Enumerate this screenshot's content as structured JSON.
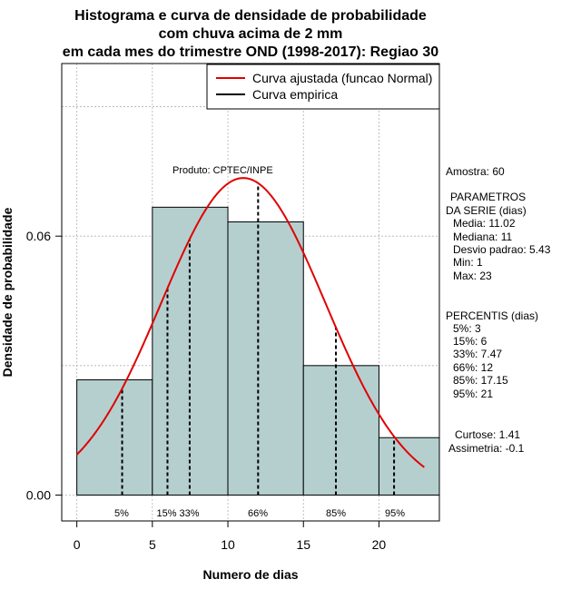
{
  "chart_data": {
    "type": "histogram",
    "title_lines": [
      "Histograma e curva de densidade de probabilidade",
      "com chuva acima de 2 mm",
      "em cada mes do trimestre OND (1998-2017): Regiao 30"
    ],
    "xlabel": "Numero de dias",
    "ylabel": "Densidade de probabilidade",
    "xlim": [
      -1,
      24
    ],
    "ylim": [
      -0.006,
      0.1
    ],
    "x_ticks": [
      0,
      5,
      10,
      15,
      20
    ],
    "y_ticks": [
      0.0,
      0.06
    ],
    "y_tick_labels": [
      "0.00",
      "0.06"
    ],
    "grid_x": [
      0,
      5,
      10,
      15,
      20
    ],
    "grid_y": [
      0.0,
      0.03,
      0.06,
      0.09
    ],
    "bins": [
      {
        "start": 0,
        "end": 5,
        "density": 0.0267
      },
      {
        "start": 5,
        "end": 10,
        "density": 0.0667
      },
      {
        "start": 10,
        "end": 15,
        "density": 0.0633
      },
      {
        "start": 15,
        "end": 20,
        "density": 0.03
      },
      {
        "start": 20,
        "end": 24,
        "density": 0.0133
      }
    ],
    "normal_curve": {
      "mean": 11.02,
      "sd": 5.43,
      "x_from": 0,
      "x_to": 23
    },
    "percentile_lines": [
      {
        "x": 3,
        "label": "5%"
      },
      {
        "x": 6,
        "label": "15%"
      },
      {
        "x": 7.47,
        "label": "33%"
      },
      {
        "x": 12,
        "label": "66%"
      },
      {
        "x": 17.15,
        "label": "85%"
      },
      {
        "x": 21,
        "label": "95%"
      }
    ],
    "percentile_label_text": {
      "p5": "5%",
      "p15_33": "15% 33%",
      "p66": "66%",
      "p85": "85%",
      "p95": "95%"
    },
    "legend": {
      "position": "top-right",
      "entries": [
        {
          "label": "Curva ajustada (funcao Normal)",
          "color": "#e00000"
        },
        {
          "label": "Curva empirica",
          "color": "#000000"
        }
      ]
    },
    "product_label": "Produto: CPTEC/INPE",
    "colors": {
      "bar_fill": "#b5cfcf",
      "curve": "#e00000",
      "grid": "#b0b0b0"
    }
  },
  "stats_panel": {
    "amostra": "Amostra: 60",
    "param_title_1": "PARAMETROS",
    "param_title_2": "DA SERIE (dias)",
    "media": "Media: 11.02",
    "mediana": "Mediana: 11",
    "desvio": "Desvio padrao: 5.43",
    "min": "Min: 1",
    "max": "Max: 23",
    "perc_title": "PERCENTIS (dias)",
    "p5": "5%: 3",
    "p15": "15%: 6",
    "p33": "33%: 7.47",
    "p66": "66%: 12",
    "p85": "85%: 17.15",
    "p95": "95%: 21",
    "curtose": "Curtose: 1.41",
    "assimetria": "Assimetria: -0.1"
  }
}
